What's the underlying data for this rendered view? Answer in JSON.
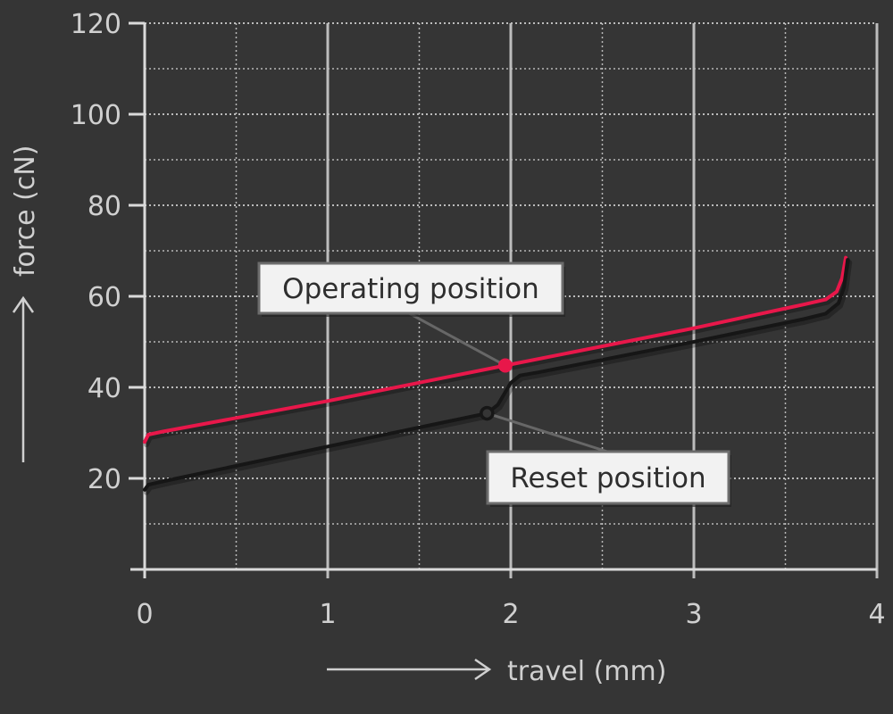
{
  "chart_data": {
    "type": "line",
    "xlabel": "travel (mm)",
    "ylabel": "force (cN)",
    "xlim": [
      0,
      4
    ],
    "ylim": [
      0,
      120
    ],
    "x_ticks": [
      0,
      1,
      2,
      3,
      4
    ],
    "y_ticks": [
      20,
      40,
      60,
      80,
      100,
      120
    ],
    "grid": true,
    "colors": {
      "background": "#353535",
      "grid": "#cfcfcf",
      "axis": "#dadada",
      "operating_curve": "#e8174a",
      "reset_curve": "#161616"
    },
    "series": [
      {
        "key": "operating",
        "color": "#e8174a",
        "points": [
          [
            0,
            28
          ],
          [
            0.02,
            29.6
          ],
          [
            0.1,
            30.3
          ],
          [
            1,
            37
          ],
          [
            1.97,
            44.8
          ],
          [
            3,
            53
          ],
          [
            3.6,
            58.2
          ],
          [
            3.72,
            59.3
          ],
          [
            3.78,
            61
          ],
          [
            3.81,
            64
          ],
          [
            3.83,
            68.5
          ]
        ]
      },
      {
        "key": "reset",
        "color": "#161616",
        "points": [
          [
            0,
            17.5
          ],
          [
            0.02,
            18.6
          ],
          [
            0.12,
            19.5
          ],
          [
            1,
            27
          ],
          [
            1.87,
            34.3
          ],
          [
            1.93,
            36.2
          ],
          [
            2.0,
            41
          ],
          [
            2.05,
            42.6
          ],
          [
            2.15,
            43.3
          ],
          [
            3,
            50
          ],
          [
            3.6,
            55
          ],
          [
            3.72,
            56.2
          ],
          [
            3.79,
            58.5
          ],
          [
            3.82,
            62
          ],
          [
            3.84,
            68
          ]
        ]
      }
    ],
    "annotations": [
      {
        "key": "operating",
        "label": "Operating position",
        "point": [
          1.97,
          44.8
        ],
        "marker": "filled"
      },
      {
        "key": "reset",
        "label": "Reset position",
        "point": [
          1.87,
          34.3
        ],
        "marker": "open"
      }
    ]
  }
}
